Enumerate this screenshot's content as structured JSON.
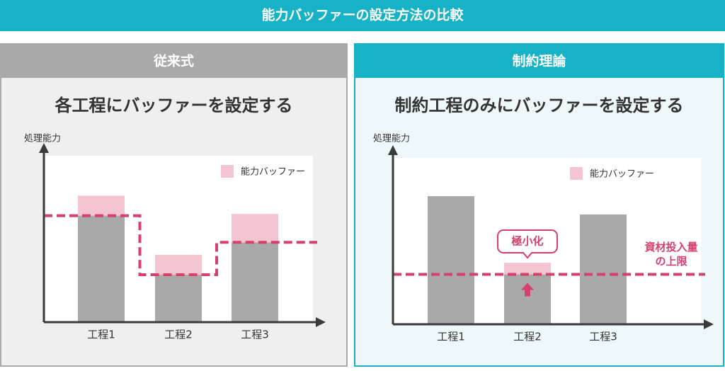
{
  "title": "能力バッファーの設定方法の比較",
  "chart_data": [
    {
      "type": "bar",
      "stacked": true,
      "panel": "従来式",
      "title": "各工程にバッファーを設定する",
      "y_label": "処理能力",
      "categories": [
        "工程1",
        "工程2",
        "工程3"
      ],
      "series": [
        {
          "color": "#a9a9a9",
          "values": [
            64,
            28.5,
            48
          ]
        },
        {
          "name": "能力バッファー",
          "color": "#f3c5d3",
          "values": [
            12,
            12,
            17
          ]
        }
      ],
      "ylim": [
        0,
        100
      ],
      "limit_line": "step",
      "limit_color": "#d6406f"
    },
    {
      "type": "bar",
      "stacked": true,
      "panel": "制約理論",
      "title": "制約工程のみにバッファーを設定する",
      "y_label": "処理能力",
      "categories": [
        "工程1",
        "工程2",
        "工程3"
      ],
      "series": [
        {
          "color": "#a9a9a9",
          "values": [
            77,
            30,
            66
          ]
        },
        {
          "name": "能力バッファー",
          "color": "#f3c5d3",
          "values": [
            0,
            7,
            0
          ]
        }
      ],
      "ylim": [
        0,
        100
      ],
      "limit_line": "flat",
      "limit_color": "#d6406f",
      "callout": "極小化",
      "limit_label": [
        "資材投入量",
        "の上限"
      ]
    }
  ]
}
